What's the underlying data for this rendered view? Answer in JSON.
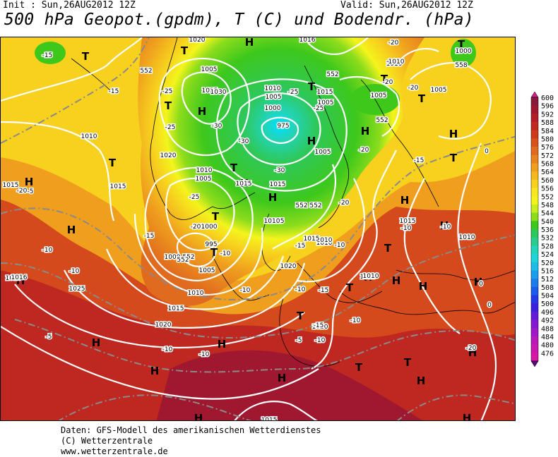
{
  "header": {
    "init": "Init : Sun,26AUG2012 12Z",
    "valid": "Valid: Sun,26AUG2012 12Z",
    "title": "500 hPa Geopot.(gpdm), T (C) und Bodendr. (hPa)"
  },
  "footer": {
    "lines": [
      "Daten: GFS-Modell des amerikanischen Wetterdienstes",
      "(C) Wetterzentrale",
      "www.wetterzentrale.de"
    ]
  },
  "legend": {
    "labels": [
      "600",
      "596",
      "592",
      "588",
      "584",
      "580",
      "576",
      "572",
      "568",
      "564",
      "560",
      "556",
      "552",
      "548",
      "544",
      "540",
      "536",
      "532",
      "528",
      "524",
      "520",
      "516",
      "512",
      "508",
      "504",
      "500",
      "496",
      "492",
      "488",
      "484",
      "480",
      "476"
    ],
    "colors": [
      "#8a1a3a",
      "#a01830",
      "#b21d28",
      "#c32820",
      "#cf3a1c",
      "#d9521c",
      "#e06a1e",
      "#e8841e",
      "#ef9e1e",
      "#f4b81e",
      "#f7d11e",
      "#f9e61e",
      "#f4f41c",
      "#c8ec1c",
      "#8cdc1c",
      "#3ec81c",
      "#2ec85a",
      "#28cc8c",
      "#22d4b8",
      "#1ed4d8",
      "#1cbce8",
      "#1c9cec",
      "#1c7cec",
      "#1c5cec",
      "#2438e8",
      "#3c20e0",
      "#6418d8",
      "#8418d0",
      "#a018c8",
      "#b818bc",
      "#c818b0",
      "#d818a4"
    ],
    "top_color": "#d0208a",
    "bottom_color": "#5a0a7a"
  },
  "map": {
    "highs": [
      "H",
      "H",
      "H",
      "H",
      "H",
      "H",
      "H",
      "H",
      "H",
      "H",
      "H",
      "H",
      "H",
      "H",
      "H",
      "H",
      "H",
      "H",
      "H",
      "H",
      "H",
      "H",
      "H",
      "H"
    ],
    "lows": [
      "T",
      "T",
      "T",
      "T",
      "T",
      "T",
      "T",
      "T",
      "T",
      "T",
      "T",
      "T",
      "T",
      "T",
      "T",
      "T",
      "T"
    ],
    "isobar_labels": [
      "1020",
      "1016",
      "1010",
      "1005",
      "1025",
      "1030",
      "1010",
      "1005",
      "1000",
      "975",
      "1020",
      "1015",
      "1005",
      "1005",
      "1010",
      "1015",
      "1015",
      "1010",
      "1005",
      "1000",
      "995",
      "1000",
      "1005",
      "1010",
      "1015",
      "1020",
      "1025",
      "1015",
      "1010",
      "1020",
      "1015",
      "1010",
      "1005",
      "1020",
      "1010",
      "1015",
      "1010",
      "1000",
      "1015",
      "1015",
      "1010",
      "1010",
      "1010",
      "1015",
      "1010",
      "1005",
      "1016",
      "552",
      "552",
      "552",
      "552",
      "552",
      "552",
      "552",
      "558"
    ],
    "temp_labels": [
      "-15",
      "-15",
      "-25",
      "-25",
      "-30",
      "-30",
      "-30",
      "-25",
      "-25",
      "-20",
      "-20",
      "-15",
      "-20",
      "-20",
      "-20",
      "-15",
      "-10",
      "-10",
      "-10",
      "-10",
      "-10",
      "-15",
      "-10",
      "-10",
      "-10",
      "-5",
      "-5",
      "-5",
      "-10",
      "-10",
      "-10",
      "0",
      "0",
      "0",
      "-20",
      "-20",
      "-15",
      "-10",
      "-25",
      "-20",
      "-15"
    ]
  }
}
